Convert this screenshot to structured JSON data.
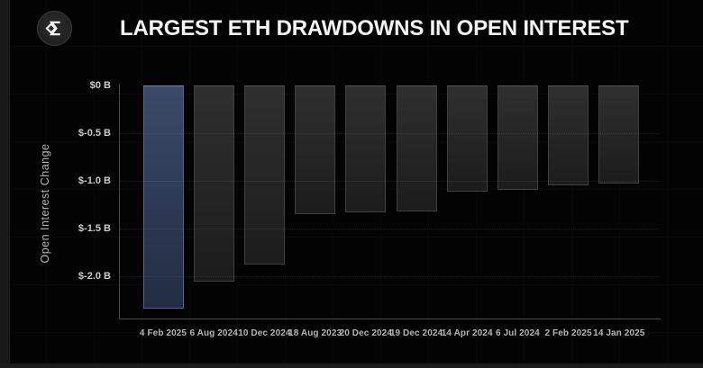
{
  "header": {
    "logo_icon": "sigma-diamond-logo"
  },
  "chart_data": {
    "type": "bar",
    "title": "LARGEST ETH DRAWDOWNS IN OPEN INTEREST",
    "ylabel": "Open Interest Change",
    "xlabel": "",
    "categories": [
      "4 Feb 2025",
      "6 Aug 2024",
      "10 Dec 2024",
      "18 Aug 2023",
      "20 Dec 2024",
      "19 Dec 2024",
      "14 Apr 2024",
      "6 Jul 2024",
      "2 Feb 2025",
      "14 Jan 2025"
    ],
    "values": [
      -2.34,
      -2.06,
      -1.88,
      -1.35,
      -1.33,
      -1.32,
      -1.12,
      -1.1,
      -1.05,
      -1.03
    ],
    "ylim": [
      -2.45,
      0
    ],
    "yticks": [
      {
        "value": 0,
        "label": "$0 B"
      },
      {
        "value": -0.5,
        "label": "$-0.5 B"
      },
      {
        "value": -1.0,
        "label": "$-1.0 B"
      },
      {
        "value": -1.5,
        "label": "$-1.5 B"
      },
      {
        "value": -2.0,
        "label": "$-2.0 B"
      }
    ],
    "grid": "horizontal-dotted",
    "legend": "none",
    "highlight_index": 0,
    "colors": {
      "background": "#030303",
      "bar_fill_top": "#2f2f2f",
      "bar_fill_bottom": "#1c1c1c",
      "bar_border": "#414141",
      "highlight_fill_top": "#3b4a68",
      "highlight_fill_bottom": "#222c44",
      "highlight_border": "#53638b",
      "axis_line": "#4a4a4a",
      "grid_line": "rgba(255,255,255,0.10)",
      "title_text": "#f4f4f4",
      "tick_text": "#cccccc",
      "xtick_text": "#b5b5b5",
      "ylabel_text": "#b5b5b5"
    }
  }
}
